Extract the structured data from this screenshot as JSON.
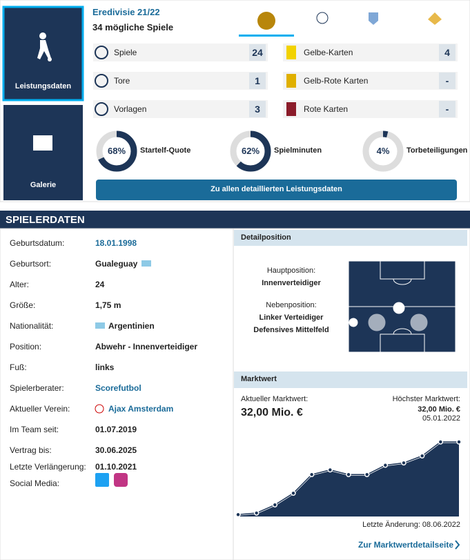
{
  "tiles": [
    {
      "label": "Leistungsdaten"
    },
    {
      "label": "Galerie"
    }
  ],
  "season": {
    "competition": "Eredivisie 21/22",
    "games": "34 mögliche Spiele"
  },
  "stats": [
    {
      "label": "Spiele",
      "value": "24"
    },
    {
      "label": "Tore",
      "value": "1"
    },
    {
      "label": "Vorlagen",
      "value": "3"
    },
    {
      "label": "Gelbe-Karten",
      "value": "4"
    },
    {
      "label": "Gelb-Rote Karten",
      "value": "-"
    },
    {
      "label": "Rote Karten",
      "value": "-"
    }
  ],
  "quotes": [
    {
      "value": 68,
      "label": "68%",
      "name": "Startelf-Quote"
    },
    {
      "value": 62,
      "label": "62%",
      "name": "Spielminuten"
    },
    {
      "value": 4,
      "label": "4%",
      "name": "Torbeteiligungen"
    }
  ],
  "button": "Zu allen detaillierten Leistungsdaten",
  "section_title": "SPIELERDATEN",
  "player": [
    {
      "label": "Geburtsdatum:",
      "value": "18.01.1998",
      "link": true
    },
    {
      "label": "Geburtsort:",
      "value": "Gualeguay",
      "flag": true
    },
    {
      "label": "Alter:",
      "value": "24"
    },
    {
      "label": "Größe:",
      "value": "1,75 m"
    },
    {
      "label": "Nationalität:",
      "value": "Argentinien",
      "flag_before": true
    },
    {
      "label": "Position:",
      "value": "Abwehr - Innenverteidiger"
    },
    {
      "label": "Fuß:",
      "value": "links"
    },
    {
      "label": "Spielerberater:",
      "value": "Scorefutbol",
      "link": true
    },
    {
      "label": "Aktueller Verein:",
      "value": "Ajax Amsterdam",
      "link": true,
      "crest": true
    },
    {
      "label": "Im Team seit:",
      "value": "01.07.2019"
    },
    {
      "label": "Vertrag bis:",
      "value": "30.06.2025"
    },
    {
      "label": "Letzte Verlängerung:",
      "value": "01.10.2021"
    },
    {
      "label": "Social Media:"
    }
  ],
  "detail": {
    "title": "Detailposition",
    "main_label": "Hauptposition:",
    "main": "Innenverteidiger",
    "side_label": "Nebenposition:",
    "side": [
      "Linker Verteidiger",
      "Defensives Mittelfeld"
    ]
  },
  "market": {
    "title": "Marktwert",
    "current_label": "Aktueller Marktwert:",
    "current": "32,00 Mio. €",
    "max_label": "Höchster Marktwert:",
    "max": "32,00 Mio. €",
    "max_date": "05.01.2022",
    "updated": "Letzte Änderung: 08.06.2022",
    "link": "Zur Marktwertdetailseite",
    "chart_data": {
      "type": "line",
      "values": [
        0.8,
        1.5,
        5,
        10,
        18,
        20,
        18,
        18,
        22,
        23,
        26,
        32,
        32
      ],
      "color": "#1d3557"
    }
  }
}
